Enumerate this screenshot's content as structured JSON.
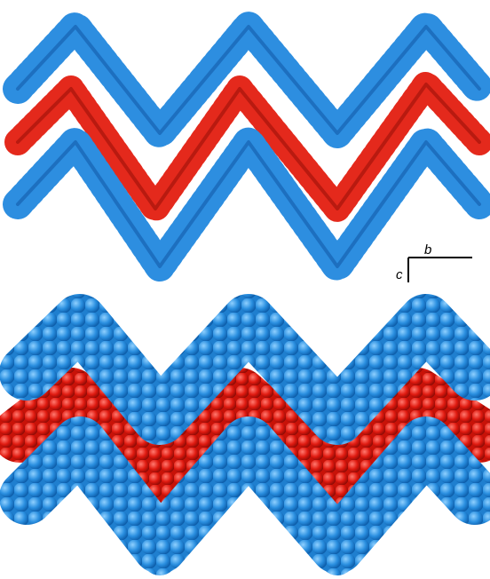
{
  "axis_labels": {
    "horizontal": "b",
    "vertical": "c"
  }
}
